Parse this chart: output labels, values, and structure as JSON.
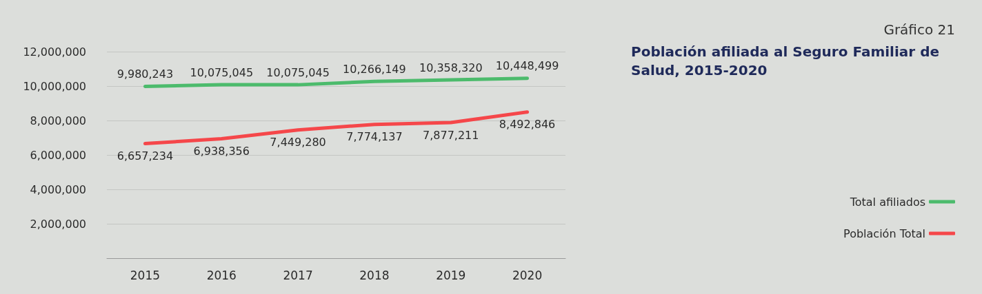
{
  "chart_data": {
    "type": "line",
    "subtitle": "Gráfico 21",
    "title": "Población afiliada al Seguro Familiar de Salud, 2015-2020",
    "categories": [
      "2015",
      "2016",
      "2017",
      "2018",
      "2019",
      "2020"
    ],
    "series": [
      {
        "name": "Total afiliados",
        "color": "#4cbb6c",
        "values": [
          9980243,
          10075045,
          10075045,
          10266149,
          10358320,
          10448499
        ],
        "value_labels": [
          "9,980,243",
          "10,075,045",
          "10,075,045",
          "10,266,149",
          "10,358,320",
          "10,448,499"
        ]
      },
      {
        "name": "Población Total",
        "color": "#f5474a",
        "values": [
          6657234,
          6938356,
          7449280,
          7774137,
          7877211,
          8492846
        ],
        "value_labels": [
          "6,657,234",
          "6,938,356",
          "7,449,280",
          "7,774,137",
          "7,877,211",
          "8,492,846"
        ]
      }
    ],
    "ylim": [
      0,
      12000000
    ],
    "yticks": [
      {
        "value": 0,
        "label": null
      },
      {
        "value": 2000000,
        "label": "2,000,000"
      },
      {
        "value": 4000000,
        "label": "4,000,000"
      },
      {
        "value": 6000000,
        "label": "6,000,000"
      },
      {
        "value": 8000000,
        "label": "8,000,000"
      },
      {
        "value": 10000000,
        "label": "10,000,000"
      },
      {
        "value": 12000000,
        "label": "12,000,000"
      }
    ],
    "grid": "y",
    "legend": "right",
    "marker": "none",
    "line_style": "solid"
  }
}
